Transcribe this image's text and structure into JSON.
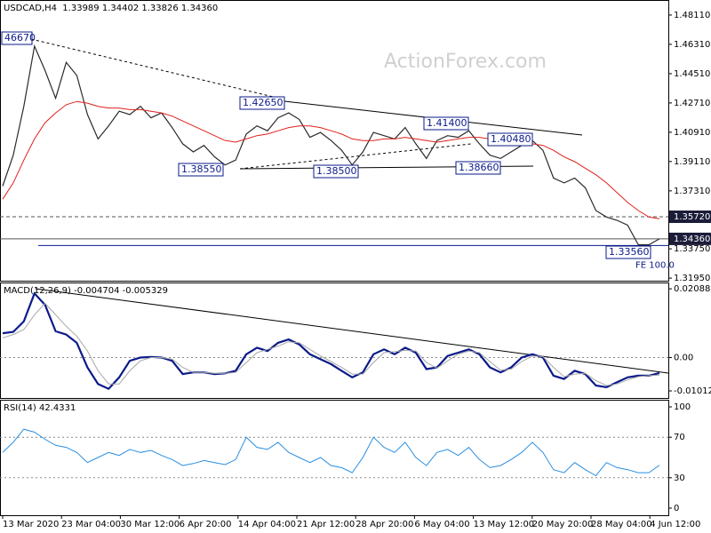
{
  "chart_data": [
    {
      "type": "line",
      "title": "USDCAD,H4  1.33989 1.34402 1.33826 1.34360",
      "watermark": "ActionForex.com",
      "ylim": [
        1.3179,
        1.4887
      ],
      "yticks": [
        {
          "value": 1.4811,
          "label": "1.48110"
        },
        {
          "value": 1.4631,
          "label": "1.46310"
        },
        {
          "value": 1.4451,
          "label": "1.44510"
        },
        {
          "value": 1.4271,
          "label": "1.42710"
        },
        {
          "value": 1.4091,
          "label": "1.40910"
        },
        {
          "value": 1.3911,
          "label": "1.39110"
        },
        {
          "value": 1.3731,
          "label": "1.37310"
        },
        {
          "value": 1.3551,
          "label": "1.35510"
        },
        {
          "value": 1.3375,
          "label": "1.33750"
        },
        {
          "value": 1.3195,
          "label": "1.31950"
        }
      ],
      "grid": false,
      "series": [
        {
          "name": "USDCAD",
          "color": "#2b2b2b",
          "values": [
            1.376,
            1.395,
            1.425,
            1.462,
            1.447,
            1.43,
            1.452,
            1.444,
            1.42,
            1.405,
            1.413,
            1.422,
            1.42,
            1.425,
            1.418,
            1.421,
            1.412,
            1.402,
            1.397,
            1.401,
            1.394,
            1.389,
            1.392,
            1.408,
            1.413,
            1.41,
            1.418,
            1.421,
            1.417,
            1.406,
            1.409,
            1.404,
            1.398,
            1.389,
            1.397,
            1.409,
            1.407,
            1.405,
            1.412,
            1.402,
            1.393,
            1.404,
            1.407,
            1.406,
            1.41,
            1.402,
            1.395,
            1.393,
            1.397,
            1.401,
            1.404,
            1.398,
            1.381,
            1.378,
            1.381,
            1.375,
            1.361,
            1.357,
            1.355,
            1.352,
            1.34,
            1.34,
            1.3436
          ]
        },
        {
          "name": "MA",
          "color": "#e0201b",
          "values": [
            1.368,
            1.378,
            1.392,
            1.405,
            1.415,
            1.421,
            1.426,
            1.428,
            1.427,
            1.425,
            1.424,
            1.424,
            1.423,
            1.423,
            1.422,
            1.421,
            1.419,
            1.416,
            1.413,
            1.41,
            1.407,
            1.404,
            1.403,
            1.405,
            1.407,
            1.408,
            1.41,
            1.412,
            1.413,
            1.413,
            1.412,
            1.41,
            1.408,
            1.405,
            1.404,
            1.404,
            1.405,
            1.405,
            1.406,
            1.405,
            1.404,
            1.403,
            1.404,
            1.405,
            1.406,
            1.406,
            1.405,
            1.403,
            1.402,
            1.402,
            1.402,
            1.401,
            1.398,
            1.394,
            1.391,
            1.387,
            1.383,
            1.378,
            1.372,
            1.366,
            1.361,
            1.357,
            1.356
          ]
        }
      ],
      "hlines": [
        {
          "value": 1.3572,
          "label": "1.35720",
          "style": "dashed"
        },
        {
          "value": 1.3436,
          "label": "1.34360",
          "style": "solid"
        }
      ],
      "fe_line": {
        "value": 1.3395,
        "label": "FE 100.0"
      },
      "annotations": [
        "46670",
        "1.42650",
        "1.41400",
        "1.40480",
        "1.38550",
        "1.38500",
        "1.38660",
        "1.33560"
      ],
      "x_labels": [
        "13 Mar 2020",
        "23 Mar 04:00",
        "30 Mar 12:00",
        "6 Apr 20:00",
        "14 Apr 04:00",
        "21 Apr 12:00",
        "28 Apr 20:00",
        "6 May 04:00",
        "13 May 12:00",
        "20 May 20:00",
        "28 May 04:00",
        "4 Jun 12:00"
      ]
    },
    {
      "type": "line",
      "title": "MACD(12,26,9) -0.004704 -0.005329",
      "ylim": [
        -0.012,
        0.022
      ],
      "yticks": [
        0.020884,
        {
          "value": 0,
          "label": "0.00"
        },
        -0.010121
      ],
      "series": [
        {
          "name": "MACD",
          "color": "#0a1a8a",
          "values": [
            0.0074,
            0.0078,
            0.011,
            0.0195,
            0.016,
            0.008,
            0.007,
            0.0045,
            -0.003,
            -0.008,
            -0.0095,
            -0.006,
            -0.001,
            0.0,
            0.0002,
            0.0,
            -0.001,
            -0.005,
            -0.0045,
            -0.0045,
            -0.005,
            -0.0048,
            -0.004,
            0.001,
            0.003,
            0.002,
            0.0045,
            0.0055,
            0.004,
            0.001,
            -0.0005,
            -0.002,
            -0.004,
            -0.006,
            -0.0045,
            0.001,
            0.0025,
            0.001,
            0.003,
            0.0015,
            -0.0035,
            -0.003,
            0.0005,
            0.0015,
            0.0025,
            0.001,
            -0.003,
            -0.0045,
            -0.003,
            0.0,
            0.001,
            0.0,
            -0.0055,
            -0.0065,
            -0.004,
            -0.005,
            -0.0085,
            -0.009,
            -0.0075,
            -0.006,
            -0.0055,
            -0.0055,
            -0.0047
          ]
        },
        {
          "name": "Signal",
          "color": "#a8a8a8",
          "values": [
            0.006,
            0.007,
            0.0085,
            0.013,
            0.0165,
            0.013,
            0.0095,
            0.0065,
            0.002,
            -0.004,
            -0.008,
            -0.008,
            -0.004,
            -0.001,
            0.0,
            0.0,
            -0.0005,
            -0.003,
            -0.0045,
            -0.0045,
            -0.0048,
            -0.0048,
            -0.0045,
            -0.0015,
            0.0015,
            0.0025,
            0.0035,
            0.0048,
            0.0045,
            0.0025,
            0.0005,
            -0.0012,
            -0.003,
            -0.005,
            -0.005,
            -0.0015,
            0.0015,
            0.0018,
            0.0022,
            0.002,
            -0.0015,
            -0.0032,
            -0.001,
            0.001,
            0.002,
            0.0015,
            -0.0012,
            -0.0038,
            -0.0035,
            -0.0012,
            0.0005,
            0.0003,
            -0.003,
            -0.0058,
            -0.005,
            -0.0048,
            -0.007,
            -0.0085,
            -0.008,
            -0.0068,
            -0.0058,
            -0.0055,
            -0.0053
          ]
        }
      ]
    },
    {
      "type": "line",
      "title": "RSI(14) 42.4331",
      "ylim": [
        0,
        100
      ],
      "yticks": [
        100,
        70,
        30,
        0
      ],
      "series": [
        {
          "name": "RSI",
          "color": "#2a8ee0",
          "values": [
            55,
            65,
            78,
            75,
            68,
            62,
            60,
            55,
            45,
            50,
            55,
            52,
            58,
            55,
            57,
            52,
            48,
            42,
            44,
            47,
            45,
            43,
            48,
            70,
            60,
            58,
            65,
            55,
            50,
            45,
            50,
            42,
            40,
            35,
            50,
            70,
            60,
            55,
            65,
            50,
            42,
            55,
            58,
            52,
            60,
            48,
            40,
            42,
            48,
            55,
            65,
            55,
            38,
            35,
            45,
            38,
            32,
            45,
            40,
            38,
            35,
            35,
            42.4331
          ]
        }
      ]
    }
  ]
}
